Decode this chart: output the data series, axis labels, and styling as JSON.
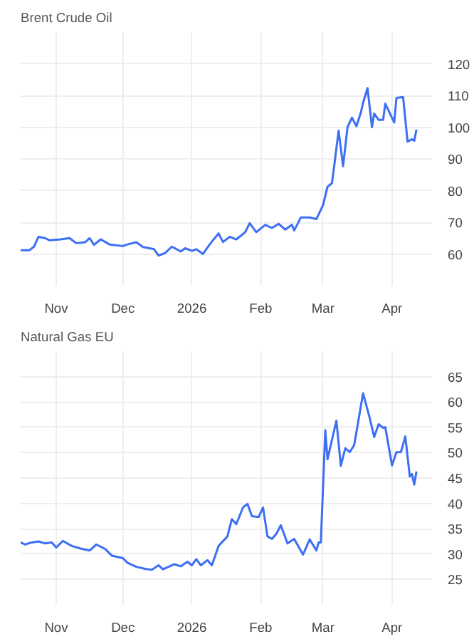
{
  "chart_data": [
    {
      "type": "line",
      "title": "Brent Crude Oil",
      "color": "#3d6ff5",
      "x": [
        "2025-10-16",
        "2025-10-20",
        "2025-10-22",
        "2025-10-24",
        "2025-10-27",
        "2025-10-29",
        "2025-11-03",
        "2025-11-07",
        "2025-11-10",
        "2025-11-14",
        "2025-11-16",
        "2025-11-18",
        "2025-11-21",
        "2025-11-25",
        "2025-12-01",
        "2025-12-03",
        "2025-12-07",
        "2025-12-10",
        "2025-12-15",
        "2025-12-17",
        "2025-12-20",
        "2025-12-23",
        "2025-12-27",
        "2025-12-29",
        "2026-01-01",
        "2026-01-03",
        "2026-01-06",
        "2026-01-09",
        "2026-01-13",
        "2026-01-15",
        "2026-01-18",
        "2026-01-21",
        "2026-01-25",
        "2026-01-27",
        "2026-01-30",
        "2026-02-03",
        "2026-02-06",
        "2026-02-09",
        "2026-02-12",
        "2026-02-15",
        "2026-02-16",
        "2026-02-19",
        "2026-02-23",
        "2026-02-26",
        "2026-03-01",
        "2026-03-03",
        "2026-03-05",
        "2026-03-06",
        "2026-03-08",
        "2026-03-10",
        "2026-03-12",
        "2026-03-14",
        "2026-03-16",
        "2026-03-18",
        "2026-03-19",
        "2026-03-21",
        "2026-03-23",
        "2026-03-24",
        "2026-03-26",
        "2026-03-28",
        "2026-03-29",
        "2026-04-02",
        "2026-04-03",
        "2026-04-06",
        "2026-04-08",
        "2026-04-10",
        "2026-04-11",
        "2026-04-12"
      ],
      "values": [
        61.2,
        61.2,
        62.3,
        65.4,
        65,
        64.3,
        64.6,
        65,
        63.4,
        63.7,
        65,
        62.9,
        64.6,
        63,
        62.5,
        63,
        63.7,
        62.2,
        61.5,
        59.5,
        60.3,
        62.3,
        60.8,
        61.8,
        61,
        61.5,
        60,
        63,
        66.5,
        63.8,
        65.4,
        64.6,
        66.9,
        69.7,
        66.9,
        69.2,
        68.2,
        69.5,
        67.7,
        69.2,
        67.4,
        71.5,
        71.5,
        71,
        75.4,
        81.2,
        82.3,
        87.7,
        98.9,
        87.7,
        100,
        103,
        100.3,
        104.6,
        107.7,
        112.3,
        100,
        104.3,
        102.3,
        102.3,
        107.4,
        101.5,
        109.2,
        109.5,
        95.4,
        96.2,
        95.7,
        99.2
      ],
      "xlim": [
        "2025-10-16",
        "2026-04-19"
      ],
      "ylim": [
        50,
        130
      ],
      "xticks": [
        {
          "value": "2025-11-01",
          "label": "Nov"
        },
        {
          "value": "2025-12-01",
          "label": "Dec"
        },
        {
          "value": "2026-01-01",
          "label": "2026"
        },
        {
          "value": "2026-02-01",
          "label": "Feb"
        },
        {
          "value": "2026-03-01",
          "label": "Mar"
        },
        {
          "value": "2026-04-01",
          "label": "Apr"
        }
      ],
      "yticks": [
        60,
        70,
        80,
        90,
        100,
        110,
        120
      ],
      "grid": true
    },
    {
      "type": "line",
      "title": "Natural Gas EU",
      "color": "#3d6ff5",
      "x": [
        "2025-10-16",
        "2025-10-18",
        "2025-10-21",
        "2025-10-24",
        "2025-10-27",
        "2025-10-30",
        "2025-11-01",
        "2025-11-04",
        "2025-11-08",
        "2025-11-12",
        "2025-11-16",
        "2025-11-19",
        "2025-11-23",
        "2025-11-26",
        "2025-12-01",
        "2025-12-03",
        "2025-12-07",
        "2025-12-11",
        "2025-12-14",
        "2025-12-17",
        "2025-12-19",
        "2025-12-24",
        "2025-12-27",
        "2025-12-30",
        "2026-01-01",
        "2026-01-03",
        "2026-01-05",
        "2026-01-08",
        "2026-01-10",
        "2026-01-13",
        "2026-01-17",
        "2026-01-19",
        "2026-01-21",
        "2026-01-24",
        "2026-01-26",
        "2026-01-28",
        "2026-01-31",
        "2026-02-02",
        "2026-02-04",
        "2026-02-06",
        "2026-02-08",
        "2026-02-10",
        "2026-02-13",
        "2026-02-16",
        "2026-02-20",
        "2026-02-23",
        "2026-02-26",
        "2026-02-27",
        "2026-02-28",
        "2026-03-02",
        "2026-03-03",
        "2026-03-07",
        "2026-03-09",
        "2026-03-11",
        "2026-03-13",
        "2026-03-15",
        "2026-03-19",
        "2026-03-22",
        "2026-03-24",
        "2026-03-26",
        "2026-03-28",
        "2026-03-29",
        "2026-04-01",
        "2026-04-03",
        "2026-04-05",
        "2026-04-07",
        "2026-04-09",
        "2026-04-10",
        "2026-04-11",
        "2026-04-12"
      ],
      "values": [
        32.3,
        31.9,
        32.3,
        32.5,
        32.1,
        32.3,
        31.3,
        32.6,
        31.6,
        31.1,
        30.7,
        31.9,
        31,
        29.7,
        29.2,
        28.3,
        27.5,
        27.1,
        26.9,
        27.8,
        27,
        28,
        27.6,
        28.5,
        27.8,
        29,
        27.8,
        28.8,
        27.8,
        31.6,
        33.5,
        36.9,
        35.9,
        39.2,
        39.9,
        37.5,
        37.3,
        39.2,
        33.5,
        33,
        34,
        35.7,
        32.1,
        33,
        29.9,
        32.9,
        30.7,
        32.3,
        32.3,
        54.4,
        48.7,
        56.3,
        47.4,
        50.9,
        50.1,
        51.5,
        61.7,
        56.8,
        53.1,
        55.6,
        54.9,
        55,
        47.5,
        50.1,
        50.1,
        53.2,
        45.3,
        45.8,
        43.7,
        46.3
      ],
      "xlim": [
        "2025-10-16",
        "2026-04-19"
      ],
      "ylim": [
        20,
        70
      ],
      "xticks": [
        {
          "value": "2025-11-01",
          "label": "Nov"
        },
        {
          "value": "2025-12-01",
          "label": "Dec"
        },
        {
          "value": "2026-01-01",
          "label": "2026"
        },
        {
          "value": "2026-02-01",
          "label": "Feb"
        },
        {
          "value": "2026-03-01",
          "label": "Mar"
        },
        {
          "value": "2026-04-01",
          "label": "Apr"
        }
      ],
      "yticks": [
        25,
        30,
        35,
        40,
        45,
        50,
        55,
        60,
        65
      ],
      "grid": true
    }
  ]
}
